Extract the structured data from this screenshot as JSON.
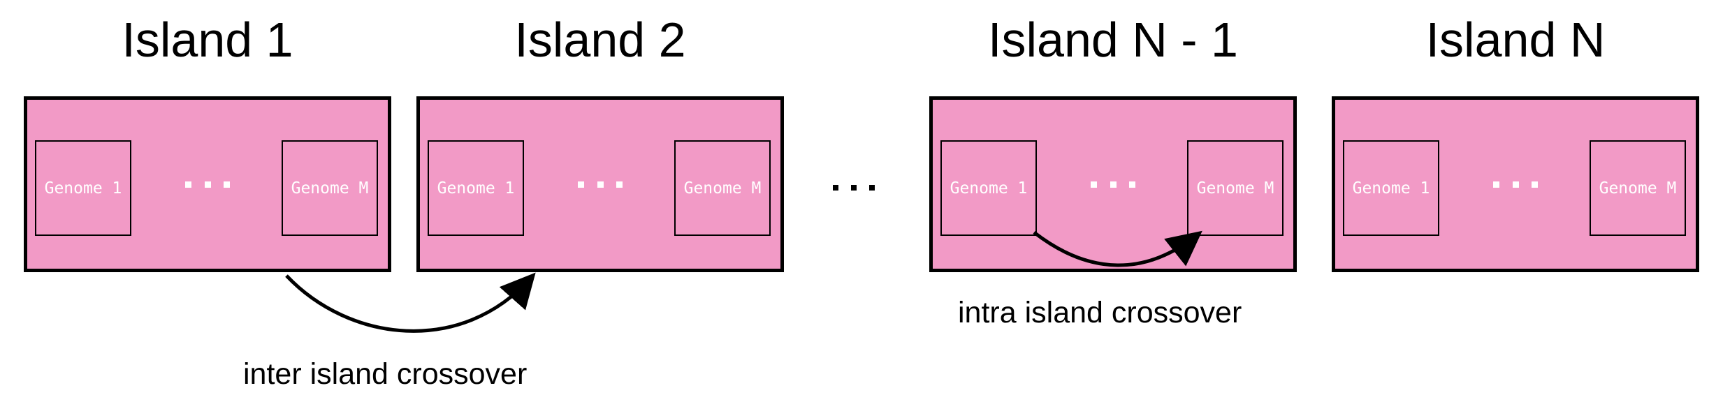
{
  "colors": {
    "island_fill": "#f29ac6",
    "border": "#000000",
    "genome_text": "#ffffff",
    "arrow": "#000000"
  },
  "islands": [
    {
      "title": "Island 1",
      "genome_first": "Genome 1",
      "genome_last": "Genome M"
    },
    {
      "title": "Island 2",
      "genome_first": "Genome 1",
      "genome_last": "Genome M"
    },
    {
      "title": "Island N - 1",
      "genome_first": "Genome 1",
      "genome_last": "Genome M"
    },
    {
      "title": "Island N",
      "genome_first": "Genome 1",
      "genome_last": "Genome M"
    }
  ],
  "captions": {
    "inter": "inter island crossover",
    "intra": "intra island crossover"
  }
}
